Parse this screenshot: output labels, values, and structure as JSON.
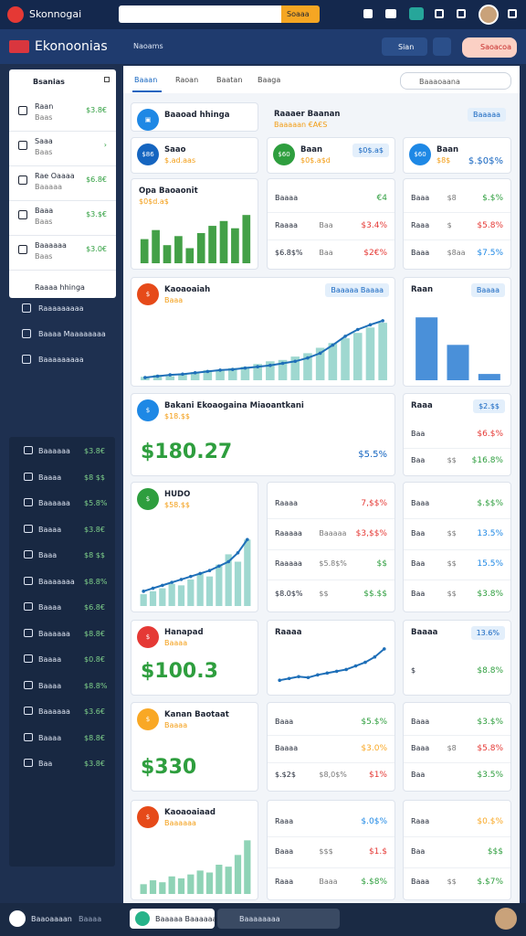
{
  "topbar": {
    "brand": "Skonnogai",
    "search_button": "Soaaa"
  },
  "header": {
    "title": "Ekonoonias",
    "dropdown": "Naoams",
    "button1": "Sian",
    "button2": "Saoacoa"
  },
  "sidebar": {
    "panel_title": "Bsanias",
    "panel_items": [
      {
        "label": "Raan",
        "sub": "Baas",
        "value": "$3.8€"
      },
      {
        "label": "Saaa",
        "sub": "Baas",
        "value": "›"
      },
      {
        "label": "Rae Oaaaa",
        "sub": "Baaaaa",
        "value": "$6.8€"
      },
      {
        "label": "Baaa",
        "sub": "Baas",
        "value": "$3.$€"
      },
      {
        "label": "Baaaaaa",
        "sub": "Baas",
        "value": "$3.0€"
      }
    ],
    "panel_footer": "Raaaa hhinga",
    "links": [
      "Raaaaaaaaa",
      "Baaaa Maaaaaaaa",
      "Baaaaaaaaa"
    ],
    "lower_items": [
      {
        "label": "Baaaaaa",
        "value": "$3.8€"
      },
      {
        "label": "Baaaa",
        "value": "$8 $$"
      },
      {
        "label": "Baaaaaa",
        "value": "$5.8%"
      },
      {
        "label": "Baaaa",
        "value": "$3.8€"
      },
      {
        "label": "Baaa",
        "value": "$8 $$"
      },
      {
        "label": "Baaaaaaa",
        "value": "$8.8%"
      },
      {
        "label": "Baaaa",
        "value": "$6.8€"
      },
      {
        "label": "Baaaaaa",
        "value": "$8.8€"
      },
      {
        "label": "Baaaa",
        "value": "$0.8€"
      },
      {
        "label": "Baaaa",
        "value": "$8.8%"
      },
      {
        "label": "Baaaaaa",
        "value": "$3.6€"
      },
      {
        "label": "Baaaa",
        "value": "$8.8€"
      },
      {
        "label": "Baa",
        "value": "$3.8€"
      }
    ]
  },
  "tabs": [
    "Baaan",
    "Raoan",
    "Baatan",
    "Baaga"
  ],
  "search": "Baaaoaana",
  "cards": [
    {
      "title": "Baaoad hhinga",
      "color": "#1e88e5",
      "badge": "▣"
    },
    {
      "title": "Raaaer Baanan",
      "sub": "Baaaaan €A€S",
      "button": "Baaaaa"
    },
    {
      "badge": "$86",
      "color": "#1565c0",
      "title": "Saao",
      "sub": "$.ad.aas"
    },
    {
      "badge": "$60",
      "color": "#2e9e3e",
      "title": "Baan",
      "sub": "$0$.a$d",
      "button": "$0$.a$"
    },
    {
      "badge": "$60",
      "color": "#1e88e5",
      "title": "Baan",
      "sub": "$8$",
      "value": "$.$0$%"
    },
    {
      "title": "Opa Baoaonit",
      "sub": "$0$d.a$",
      "bars": [
        40,
        55,
        30,
        45,
        25,
        50,
        62,
        70,
        58,
        80
      ],
      "ylim": [
        0,
        100
      ],
      "bar_color": "#43a047"
    },
    {
      "rows": [
        {
          "label": "Baaaa",
          "mid": "",
          "value": "€4",
          "color": "#2e9e3e"
        },
        {
          "label": "Raaaa",
          "mid": "Baa",
          "value": "$3.4%",
          "color": "#e53935"
        },
        {
          "label": "$6.8$%",
          "mid": "Baa",
          "value": "$2€%",
          "color": "#e53935"
        }
      ]
    },
    {
      "rows": [
        {
          "label": "Baaa",
          "mid": "$8",
          "value": "$.$%",
          "color": "#2e9e3e"
        },
        {
          "label": "Raaa",
          "mid": "$",
          "value": "$5.8%",
          "color": "#e53935"
        },
        {
          "label": "Baaa",
          "mid": "$8aa",
          "value": "$7.5%",
          "color": "#1e88e5"
        }
      ]
    },
    {
      "badge": "$",
      "color": "#e64a19",
      "title": "Kaoaoaiah",
      "sub": "Baaa",
      "button": "Baaaaa Baaaa",
      "bars": [
        5,
        8,
        6,
        10,
        12,
        15,
        14,
        18,
        20,
        24,
        28,
        30,
        35,
        40,
        48,
        55,
        62,
        70,
        78,
        85
      ],
      "line": [
        4,
        6,
        8,
        9,
        11,
        13,
        15,
        16,
        18,
        20,
        22,
        25,
        28,
        33,
        40,
        52,
        65,
        75,
        82,
        88
      ],
      "ylim": [
        0,
        100
      ],
      "bar_color": "#9fd8d0",
      "line_color": "#1e6fb8"
    },
    {
      "title": "Raan",
      "button": "Baaaa",
      "bars": [
        80,
        45,
        8
      ],
      "ylim": [
        0,
        100
      ],
      "bar_color": "#4a90d9"
    },
    {
      "badge": "$",
      "color": "#1e88e5",
      "title": "Bakani Ekoaogaina Miaoantkani",
      "sub": "$18.$$",
      "big": "$180.27",
      "value": "$5.5%"
    },
    {
      "title": "Raaa",
      "button": "$2.$$",
      "rows": [
        {
          "label": "Baa",
          "mid": "",
          "value": "$6.$%",
          "color": "#e53935"
        },
        {
          "label": "Baa",
          "mid": "$$",
          "value": "$16.8%",
          "color": "#2e9e3e"
        }
      ]
    },
    {
      "badge": "$",
      "color": "#2e9e3e",
      "title": "HUDO",
      "sub": "$58.$$",
      "bars": [
        8,
        10,
        12,
        15,
        14,
        18,
        22,
        20,
        28,
        35,
        30,
        45
      ],
      "line": [
        10,
        12,
        14,
        16,
        18,
        20,
        22,
        24,
        27,
        30,
        36,
        45
      ],
      "ylim": [
        0,
        60
      ],
      "bar_color": "#9fd8d0",
      "line_color": "#1e6fb8"
    },
    {
      "rows": [
        {
          "label": "Raaaa",
          "mid": "",
          "value": "7,$$%",
          "color": "#e53935"
        },
        {
          "label": "Raaaaa",
          "mid": "Baaaaa",
          "value": "$3,$$%",
          "color": "#e53935"
        },
        {
          "label": "Raaaaa",
          "mid": "$5.8$%",
          "value": "$$",
          "color": "#2e9e3e"
        },
        {
          "label": "$8.0$%",
          "mid": "$$",
          "value": "$$.$$",
          "color": "#2e9e3e"
        }
      ]
    },
    {
      "rows": [
        {
          "label": "Baaa",
          "mid": "",
          "value": "$.$$%",
          "color": "#2e9e3e"
        },
        {
          "label": "Baa",
          "mid": "$$",
          "value": "13.5%",
          "color": "#1e88e5"
        },
        {
          "label": "Baa",
          "mid": "$$",
          "value": "15.5%",
          "color": "#1e88e5"
        },
        {
          "label": "Baa",
          "mid": "$$",
          "value": "$3.8%",
          "color": "#2e9e3e"
        }
      ]
    },
    {
      "badge": "$",
      "color": "#e53935",
      "title": "Hanapad",
      "sub": "Baaaa",
      "big": "$100.3"
    },
    {
      "title": "Raaaa",
      "line": [
        10,
        12,
        14,
        13,
        16,
        18,
        20,
        22,
        26,
        30,
        36,
        45
      ],
      "ylim": [
        0,
        50
      ],
      "line_color": "#1e6fb8"
    },
    {
      "title": "Baaaa",
      "button": "13.6%",
      "rows": [
        {
          "label": "$",
          "mid": "",
          "value": "$8.8%",
          "color": "#2e9e3e"
        }
      ]
    },
    {
      "badge": "$",
      "color": "#f9a825",
      "title": "Kanan Baotaat",
      "sub": "Baaaa",
      "big": "$330"
    },
    {
      "rows": [
        {
          "label": "Baaa",
          "mid": "",
          "value": "$5.$%",
          "color": "#2e9e3e"
        },
        {
          "label": "Baaaa",
          "mid": "",
          "value": "$3.0%",
          "color": "#f9a825"
        },
        {
          "label": "$.$2$",
          "mid": "$8,0$%",
          "value": "$1%",
          "color": "#e53935"
        }
      ]
    },
    {
      "rows": [
        {
          "label": "Baaa",
          "mid": "",
          "value": "$3.$%",
          "color": "#2e9e3e"
        },
        {
          "label": "Baaa",
          "mid": "$8",
          "value": "$5.8%",
          "color": "#e53935"
        },
        {
          "label": "Baa",
          "mid": "",
          "value": "$3.5%",
          "color": "#2e9e3e"
        }
      ]
    },
    {
      "badge": "$",
      "color": "#e64a19",
      "title": "Kaoaoaiaad",
      "sub": "Baaaaaa",
      "bars": [
        10,
        14,
        12,
        18,
        16,
        20,
        24,
        22,
        30,
        28,
        40,
        55
      ],
      "ylim": [
        0,
        60
      ],
      "bar_color": "#8fd3b6"
    },
    {
      "rows": [
        {
          "label": "Raaa",
          "mid": "",
          "value": "$.0$%",
          "color": "#1e88e5"
        },
        {
          "label": "Baaa",
          "mid": "$$$",
          "value": "$1.$",
          "color": "#e53935"
        },
        {
          "label": "Raaa",
          "mid": "Baaa",
          "value": "$.$8%",
          "color": "#2e9e3e"
        }
      ]
    },
    {
      "rows": [
        {
          "label": "Raaa",
          "mid": "",
          "value": "$0.$%",
          "color": "#f9a825"
        },
        {
          "label": "Baa",
          "mid": "",
          "value": "$$$",
          "color": "#2e9e3e"
        },
        {
          "label": "Baaa",
          "mid": "$$",
          "value": "$.$7%",
          "color": "#2e9e3e"
        }
      ]
    }
  ],
  "bottombar": {
    "user": "Baaoaaaan",
    "user_sub": "Baaaa",
    "input": "Baaaaa Baaaaaa",
    "input2": "Baaaaaaaa"
  }
}
